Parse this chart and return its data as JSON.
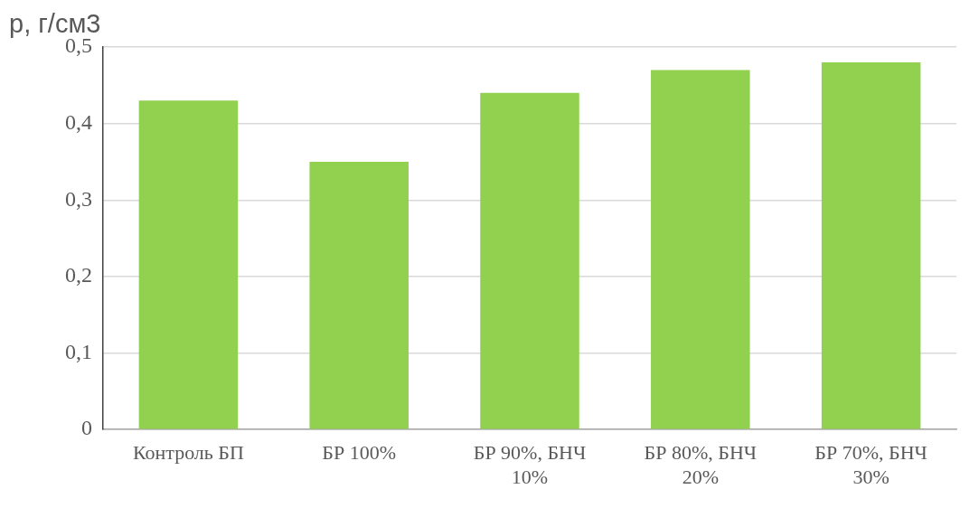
{
  "chart_data": {
    "type": "bar",
    "ylabel": "р, г/см3",
    "categories": [
      "Контроль БП",
      "БР 100%",
      "БР 90%, БНЧ 10%",
      "БР 80%, БНЧ 20%",
      "БР 70%, БНЧ 30%"
    ],
    "values": [
      0.43,
      0.35,
      0.44,
      0.47,
      0.48
    ],
    "color": "#92d050",
    "ylim": [
      0,
      0.5
    ],
    "yticks": [
      0,
      {
        "value": 0.1,
        "label": "0,1"
      },
      {
        "value": 0.2,
        "label": "0,2"
      },
      {
        "value": 0.3,
        "label": "0,3"
      },
      {
        "value": 0.4,
        "label": "0,4"
      },
      {
        "value": 0.5,
        "label": "0,5"
      }
    ],
    "grid": "y"
  }
}
